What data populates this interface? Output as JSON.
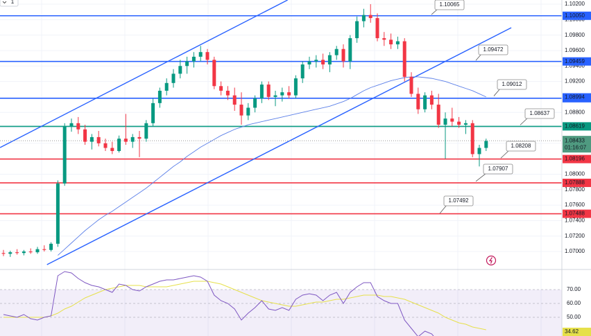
{
  "chart_data": {
    "type": "candlestick",
    "interval_label": "1",
    "up_color": "#089981",
    "down_color": "#f23645",
    "grid": true,
    "ylim": [
      1.06776,
      1.10254
    ],
    "yticks": [
      {
        "value": 1.07,
        "label": "1.07000"
      },
      {
        "value": 1.072,
        "label": "1.07200"
      },
      {
        "value": 1.074,
        "label": "1.07400"
      },
      {
        "value": 1.076,
        "label": "1.07600"
      },
      {
        "value": 1.078,
        "label": "1.07800"
      },
      {
        "value": 1.08,
        "label": "1.08000"
      },
      {
        "value": 1.082,
        "label": "1.08200"
      },
      {
        "value": 1.084,
        "label": "1.08400"
      },
      {
        "value": 1.086,
        "label": "1.08600"
      },
      {
        "value": 1.088,
        "label": "1.08800"
      },
      {
        "value": 1.09,
        "label": "1.09000"
      },
      {
        "value": 1.092,
        "label": "1.09200"
      },
      {
        "value": 1.094,
        "label": "1.09400"
      },
      {
        "value": 1.096,
        "label": "1.09600"
      },
      {
        "value": 1.098,
        "label": "1.09800"
      },
      {
        "value": 1.1,
        "label": "1.10000"
      },
      {
        "value": 1.102,
        "label": "1.10200"
      }
    ],
    "candles": [
      [
        1.0698,
        1.0702,
        1.0694,
        1.0697
      ],
      [
        1.0697,
        1.0701,
        1.0693,
        1.0699
      ],
      [
        1.0699,
        1.0703,
        1.0696,
        1.0698
      ],
      [
        1.0698,
        1.0702,
        1.0695,
        1.07
      ],
      [
        1.07,
        1.0704,
        1.0697,
        1.0699
      ],
      [
        1.0699,
        1.0706,
        1.0697,
        1.0703
      ],
      [
        1.0703,
        1.0708,
        1.07,
        1.0702
      ],
      [
        1.0702,
        1.0712,
        1.07,
        1.071
      ],
      [
        1.071,
        1.0792,
        1.0706,
        1.0788
      ],
      [
        1.0788,
        1.0866,
        1.0785,
        1.0862
      ],
      [
        1.0862,
        1.0872,
        1.0855,
        1.0866
      ],
      [
        1.0866,
        1.0874,
        1.0852,
        1.0858
      ],
      [
        1.0858,
        1.0864,
        1.0838,
        1.0842
      ],
      [
        1.0842,
        1.0852,
        1.0832,
        1.0848
      ],
      [
        1.0848,
        1.0856,
        1.0836,
        1.084
      ],
      [
        1.084,
        1.0846,
        1.083,
        1.0834
      ],
      [
        1.0834,
        1.0842,
        1.0826,
        1.083
      ],
      [
        1.083,
        1.085,
        1.0828,
        1.0846
      ],
      [
        1.0846,
        1.0878,
        1.0838,
        1.0842
      ],
      [
        1.0842,
        1.0852,
        1.0834,
        1.0848
      ],
      [
        1.0848,
        1.0856,
        1.0822,
        1.0846
      ],
      [
        1.0846,
        1.087,
        1.0842,
        1.0866
      ],
      [
        1.0866,
        1.0898,
        1.0862,
        1.0892
      ],
      [
        1.0892,
        1.0912,
        1.0886,
        1.0908
      ],
      [
        1.0908,
        1.0924,
        1.0902,
        1.0918
      ],
      [
        1.0918,
        1.0936,
        1.0912,
        1.093
      ],
      [
        1.093,
        1.0948,
        1.0924,
        1.094
      ],
      [
        1.094,
        1.0952,
        1.093,
        1.0946
      ],
      [
        1.0946,
        1.0958,
        1.0938,
        1.0952
      ],
      [
        1.0952,
        1.0966,
        1.0946,
        1.0958
      ],
      [
        1.0958,
        1.0962,
        1.0942,
        1.0948
      ],
      [
        1.0948,
        1.0952,
        1.091,
        1.0914
      ],
      [
        1.0914,
        1.092,
        1.0902,
        1.0908
      ],
      [
        1.0908,
        1.0914,
        1.0896,
        1.0902
      ],
      [
        1.0902,
        1.0912,
        1.0882,
        1.089
      ],
      [
        1.089,
        1.0906,
        1.0864,
        1.0876
      ],
      [
        1.0876,
        1.0892,
        1.087,
        1.0886
      ],
      [
        1.0886,
        1.0902,
        1.088,
        1.0898
      ],
      [
        1.0898,
        1.092,
        1.0892,
        1.0916
      ],
      [
        1.0916,
        1.092,
        1.0896,
        1.09
      ],
      [
        1.09,
        1.0908,
        1.0888,
        1.0902
      ],
      [
        1.0902,
        1.0912,
        1.0894,
        1.0906
      ],
      [
        1.0906,
        1.0914,
        1.0898,
        1.0902
      ],
      [
        1.0902,
        1.0928,
        1.0898,
        1.0924
      ],
      [
        1.0924,
        1.0946,
        1.0918,
        1.0942
      ],
      [
        1.0942,
        1.0952,
        1.0936,
        1.0946
      ],
      [
        1.0946,
        1.0954,
        1.0938,
        1.0948
      ],
      [
        1.0948,
        1.0956,
        1.0936,
        1.0942
      ],
      [
        1.0942,
        1.0958,
        1.0932,
        1.0954
      ],
      [
        1.0954,
        1.0966,
        1.0948,
        1.0962
      ],
      [
        1.0962,
        1.0968,
        1.0938,
        1.0946
      ],
      [
        1.0946,
        1.098,
        1.0936,
        1.0976
      ],
      [
        1.0976,
        1.1004,
        1.097,
        1.0998
      ],
      [
        1.0998,
        1.1014,
        1.099,
        1.1006
      ],
      [
        1.1006,
        1.102,
        1.0996,
        1.1002
      ],
      [
        1.1002,
        1.1008,
        1.0972,
        1.0976
      ],
      [
        1.0976,
        1.0984,
        1.0966,
        1.0974
      ],
      [
        1.0974,
        1.0982,
        1.0962,
        1.0968
      ],
      [
        1.0968,
        1.0978,
        1.0962,
        1.0972
      ],
      [
        1.0972,
        1.0976,
        1.092,
        1.0926
      ],
      [
        1.0926,
        1.0932,
        1.09,
        1.0904
      ],
      [
        1.0904,
        1.0912,
        1.0878,
        1.0884
      ],
      [
        1.0884,
        1.0906,
        1.088,
        1.0902
      ],
      [
        1.0902,
        1.0908,
        1.0884,
        1.089
      ],
      [
        1.089,
        1.0904,
        1.086,
        1.0864
      ],
      [
        1.0864,
        1.088,
        1.082,
        1.0872
      ],
      [
        1.0872,
        1.0886,
        1.0862,
        1.0868
      ],
      [
        1.0868,
        1.0874,
        1.086,
        1.0864
      ],
      [
        1.0864,
        1.087,
        1.0852,
        1.0866
      ],
      [
        1.0866,
        1.087,
        1.0822,
        1.0826
      ],
      [
        1.0826,
        1.0838,
        1.081,
        1.0834
      ],
      [
        1.0834,
        1.0846,
        1.083,
        1.0843
      ]
    ],
    "moving_average": {
      "color": "#5b7fe8",
      "values": [
        null,
        null,
        null,
        null,
        null,
        null,
        null,
        null,
        1.0695,
        1.0703,
        1.0711,
        1.0719,
        1.0727,
        1.0734,
        1.0741,
        1.0747,
        1.0752,
        1.0758,
        1.0764,
        1.077,
        1.0776,
        1.0782,
        1.0789,
        1.0796,
        1.0803,
        1.081,
        1.0816,
        1.0823,
        1.0829,
        1.0835,
        1.084,
        1.0845,
        1.085,
        1.0854,
        1.0858,
        1.0861,
        1.0864,
        1.0866,
        1.0868,
        1.087,
        1.0872,
        1.0874,
        1.0876,
        1.0878,
        1.088,
        1.0882,
        1.0884,
        1.0886,
        1.0888,
        1.0891,
        1.0894,
        1.0898,
        1.0903,
        1.0908,
        1.0912,
        1.0915,
        1.0918,
        1.0921,
        1.0923,
        1.0925,
        1.0926,
        1.0926,
        1.0925,
        1.0924,
        1.0922,
        1.092,
        1.0917,
        1.0914,
        1.0911,
        1.0908,
        1.0904,
        1.09
      ],
      "last": {
        "value": 1.08994,
        "label": "1.08994"
      }
    },
    "trendlines": [
      {
        "color": "#2962ff",
        "x": [
          -0.5,
          41.8
        ],
        "y": [
          1.08345,
          1.10254
        ]
      },
      {
        "color": "#2962ff",
        "x": [
          6.4,
          74.7
        ],
        "y": [
          1.0683,
          1.09895
        ]
      }
    ],
    "levels": [
      {
        "value": 1.1005,
        "label": "1.10050",
        "color": "#2962ff"
      },
      {
        "value": 1.09459,
        "label": "1.09459",
        "color": "#2962ff"
      },
      {
        "value": 1.08983,
        "label": "1.08983",
        "color": "#2962ff"
      },
      {
        "value": 1.08619,
        "label": "1.08619",
        "color": "#089981"
      },
      {
        "value": 1.08196,
        "label": "1.08196",
        "color": "#f23645"
      },
      {
        "value": 1.07888,
        "label": "1.07888",
        "color": "#f23645"
      },
      {
        "value": 1.07488,
        "label": "1.07488",
        "color": "#f23645"
      }
    ],
    "callouts": [
      {
        "value": 1.10065,
        "label": "1.10065"
      },
      {
        "value": 1.09472,
        "label": "1.09472"
      },
      {
        "value": 1.09012,
        "label": "1.09012"
      },
      {
        "value": 1.08637,
        "label": "1.08637"
      },
      {
        "value": 1.08208,
        "label": "1.08208"
      },
      {
        "value": 1.07907,
        "label": "1.07907"
      },
      {
        "value": 1.07492,
        "label": "1.07492"
      }
    ],
    "current_price": {
      "value": 1.08433,
      "label": "1.08433",
      "countdown": "01:16:07"
    },
    "rsi": {
      "color": "#7e57c2",
      "ma_color": "#e6e04a",
      "ylim": [
        36.5,
        84
      ],
      "band": [
        30,
        70
      ],
      "yticks": [
        {
          "value": 50,
          "label": "50.00"
        },
        {
          "value": 60,
          "label": "60.00"
        },
        {
          "value": 70,
          "label": "70.00"
        }
      ],
      "values": [
        52,
        51,
        50,
        52,
        49,
        48,
        50,
        51,
        80,
        83,
        82,
        78,
        75,
        73,
        72,
        70,
        68,
        74,
        73,
        70,
        69,
        72,
        74,
        76,
        77,
        77,
        78,
        79,
        80,
        79,
        76,
        66,
        62,
        60,
        56,
        48,
        53,
        57,
        62,
        56,
        55,
        57,
        55,
        63,
        66,
        67,
        66,
        62,
        66,
        68,
        60,
        68,
        72,
        75,
        75,
        65,
        62,
        60,
        60,
        48,
        42,
        36,
        40,
        38,
        32,
        36,
        35,
        34,
        35,
        30,
        34,
        35
      ],
      "ma": [
        50,
        50,
        50,
        50,
        50,
        50,
        50,
        51,
        53,
        56,
        58,
        61,
        64,
        66,
        68,
        70,
        71,
        72,
        73,
        73,
        73,
        72,
        72,
        72,
        72,
        73,
        74,
        75,
        76,
        76,
        76,
        75,
        74,
        72,
        70,
        68,
        66,
        64,
        62,
        61,
        60,
        59,
        58,
        58,
        59,
        60,
        61,
        61,
        62,
        63,
        63,
        64,
        65,
        66,
        66,
        66,
        65,
        65,
        64,
        63,
        61,
        59,
        57,
        55,
        53,
        50,
        48,
        46,
        45,
        43,
        42,
        41
      ],
      "current": {
        "value": 34.62,
        "label": "34.62"
      }
    }
  }
}
